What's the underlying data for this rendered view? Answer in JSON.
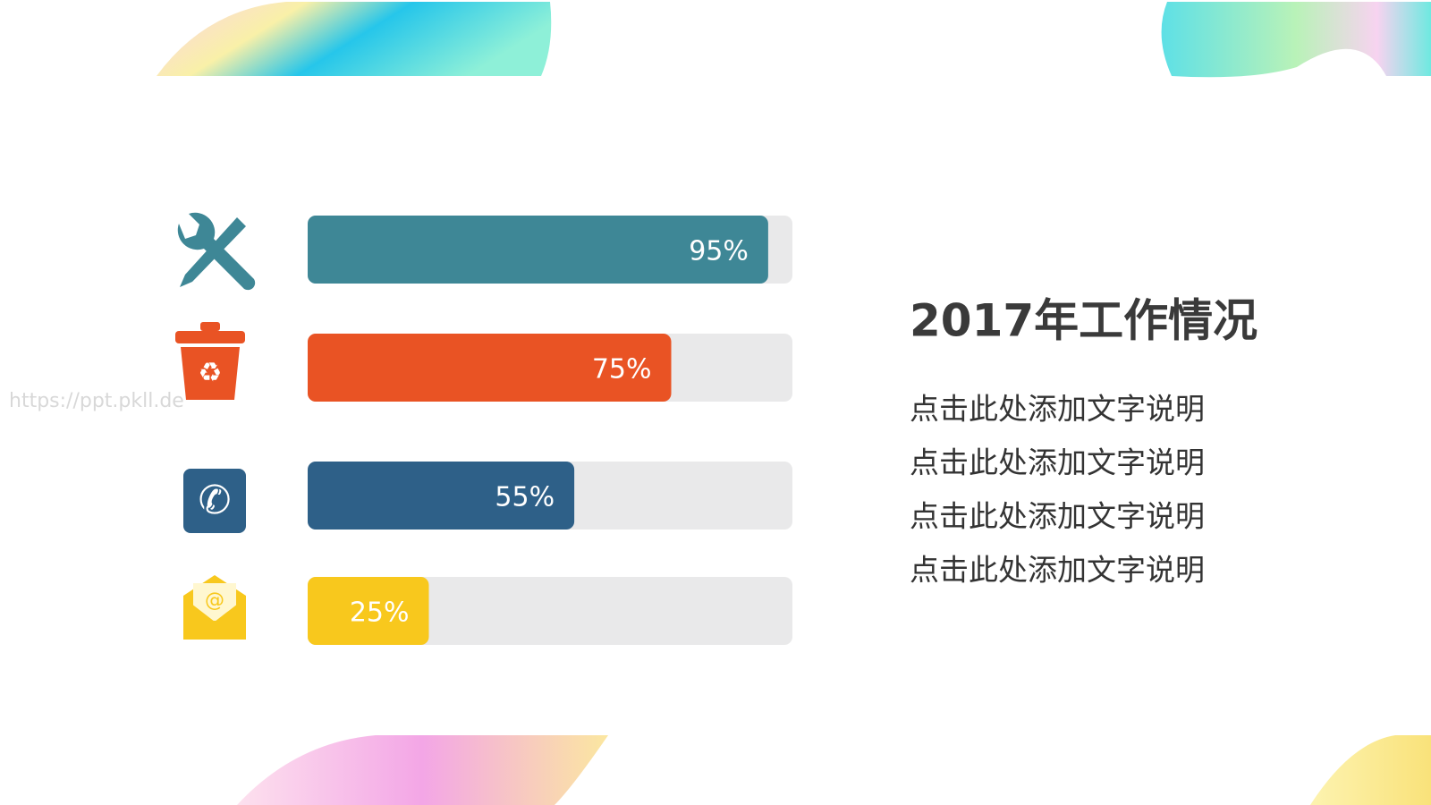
{
  "watermark": "https://ppt.pkll.de",
  "chart_data": {
    "type": "bar",
    "orientation": "horizontal",
    "values": [
      95,
      75,
      55,
      25
    ],
    "value_labels": [
      "95%",
      "75%",
      "55%",
      "25%"
    ],
    "colors": [
      "#3e8796",
      "#e95324",
      "#2e6088",
      "#f8c81d"
    ],
    "xlim": [
      0,
      100
    ]
  },
  "text_panel": {
    "title": "2017年工作情况",
    "lines": [
      "点击此处添加文字说明",
      "点击此处添加文字说明",
      "点击此处添加文字说明",
      "点击此处添加文字说明"
    ]
  }
}
